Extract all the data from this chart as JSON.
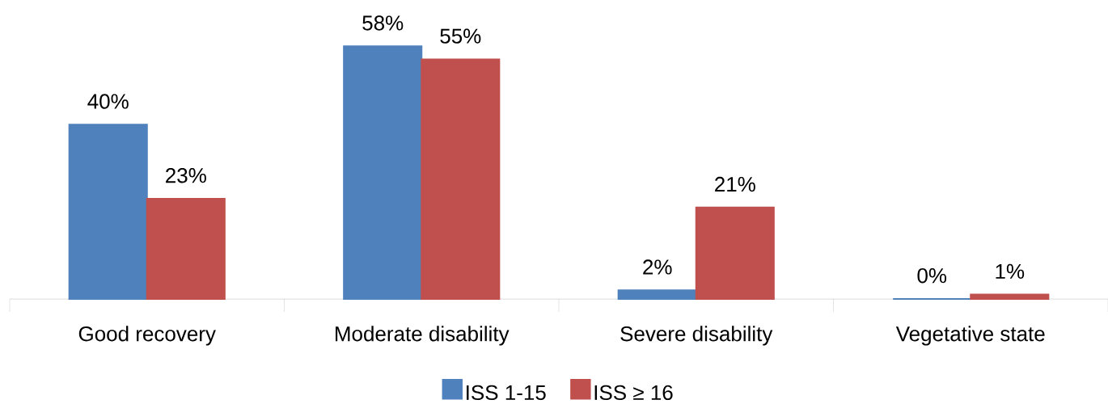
{
  "chart_data": {
    "type": "bar",
    "categories": [
      "Good recovery",
      "Moderate disability",
      "Severe disability",
      "Vegetative state"
    ],
    "series": [
      {
        "name": "ISS 1-15",
        "color": "#4f81bd",
        "values": [
          40,
          58,
          2,
          0
        ],
        "value_labels": [
          "40%",
          "58%",
          "2%",
          "0%"
        ]
      },
      {
        "name": "ISS ≥ 16",
        "color": "#c0504d",
        "values": [
          23,
          55,
          21,
          1
        ],
        "value_labels": [
          "23%",
          "55%",
          "21%",
          "1%"
        ]
      }
    ],
    "legend": "bottom"
  }
}
